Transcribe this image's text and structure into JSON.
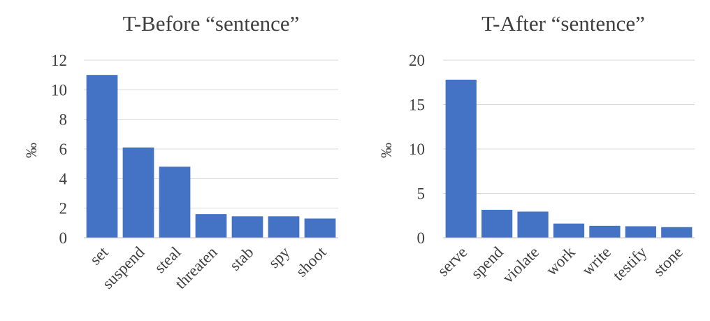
{
  "chart_data": [
    {
      "type": "bar",
      "title": "T-Before “sentence”",
      "ylabel": "‰",
      "xlabel": "",
      "categories": [
        "set",
        "suspend",
        "steal",
        "threaten",
        "stab",
        "spy",
        "shoot"
      ],
      "values": [
        11.0,
        6.1,
        4.8,
        1.6,
        1.45,
        1.45,
        1.3
      ],
      "ylim": [
        0,
        12
      ],
      "yticks": [
        "0",
        "2",
        "4",
        "6",
        "8",
        "10",
        "12"
      ],
      "grid": true,
      "color": "#4472C4"
    },
    {
      "type": "bar",
      "title": "T-After “sentence”",
      "ylabel": "‰",
      "xlabel": "",
      "categories": [
        "serve",
        "spend",
        "violate",
        "work",
        "write",
        "testify",
        "stone"
      ],
      "values": [
        17.8,
        3.15,
        2.95,
        1.6,
        1.35,
        1.3,
        1.2
      ],
      "ylim": [
        0,
        20
      ],
      "yticks": [
        "0",
        "5",
        "10",
        "15",
        "20"
      ],
      "grid": true,
      "color": "#4472C4"
    }
  ]
}
